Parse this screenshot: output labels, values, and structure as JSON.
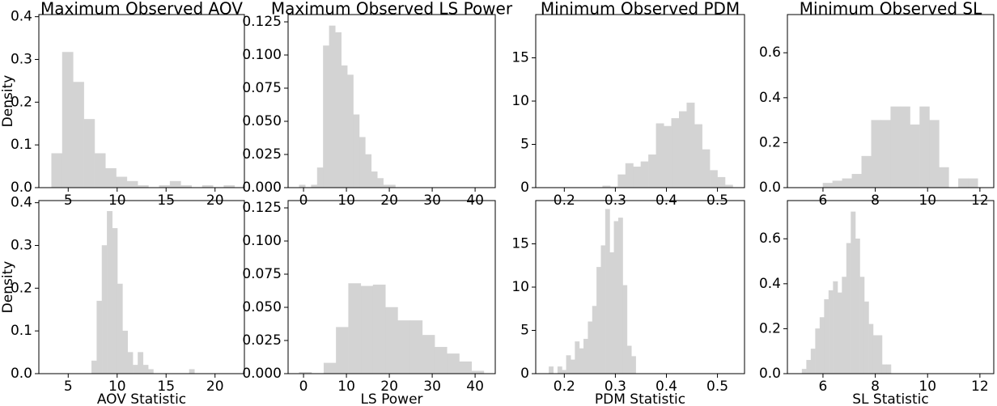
{
  "chart_data": [
    {
      "type": "histogram",
      "title": "Maximum Observed AOV",
      "ylabel": "Density",
      "color": "#d3d3d3",
      "bins": [
        3.3,
        4.4,
        5.5,
        6.6,
        7.7,
        8.8,
        9.9,
        11,
        12.1,
        13.2,
        14.3,
        15.4,
        16.5,
        17.6,
        18.7,
        19.8,
        20.9,
        22
      ],
      "values": [
        0.08,
        0.317,
        0.247,
        0.16,
        0.08,
        0.045,
        0.025,
        0.015,
        0.005,
        0,
        0.005,
        0.015,
        0.005,
        0,
        0.005,
        0,
        0.005
      ],
      "xlim": [
        2,
        23
      ],
      "xticks": [
        5,
        10,
        15,
        20
      ],
      "ylim": [
        0,
        0.405
      ],
      "yticks": [
        {
          "value": 0,
          "label": "0.0"
        },
        0.1,
        0.2,
        0.3,
        0.4
      ]
    },
    {
      "type": "histogram",
      "title": "Maximum Observed LS Power",
      "color": "#d3d3d3",
      "bins": [
        -1,
        0.4,
        1.8,
        3.2,
        4.6,
        6,
        7.4,
        8.8,
        10.2,
        11.6,
        13,
        14.4,
        15.8,
        17.2,
        18.6,
        20,
        21.4
      ],
      "values": [
        0.002,
        0,
        0.002,
        0.015,
        0.107,
        0.122,
        0.117,
        0.092,
        0.085,
        0.055,
        0.038,
        0.025,
        0.012,
        0.007,
        0.002,
        0.002
      ],
      "xlim": [
        -3.6,
        44.7
      ],
      "xticks": [
        0,
        10,
        20,
        30,
        40
      ],
      "ylim": [
        0,
        0.1305
      ],
      "yticks": [
        {
          "value": 0,
          "label": "0.000"
        },
        {
          "value": 0.025,
          "label": "0.025"
        },
        {
          "value": 0.05,
          "label": "0.050"
        },
        {
          "value": 0.075,
          "label": "0.075"
        },
        {
          "value": 0.1,
          "label": "0.100"
        },
        {
          "value": 0.125,
          "label": "0.125"
        }
      ]
    },
    {
      "type": "histogram",
      "title": "Minimum Observed PDM",
      "color": "#d3d3d3",
      "bins": [
        0.275,
        0.29,
        0.305,
        0.32,
        0.335,
        0.35,
        0.365,
        0.38,
        0.395,
        0.41,
        0.425,
        0.44,
        0.455,
        0.47,
        0.485,
        0.5,
        0.515,
        0.53
      ],
      "values": [
        0.2,
        0.1,
        1.5,
        2.8,
        2.4,
        3.0,
        3.8,
        7.4,
        7.1,
        8.0,
        8.8,
        9.8,
        7.3,
        4.4,
        2.0,
        1.2,
        0.3
      ],
      "xlim": [
        0.144,
        0.553
      ],
      "xticks": [
        0.2,
        0.3,
        0.4,
        0.5
      ],
      "ylim": [
        0,
        20
      ],
      "yticks": [
        0,
        5,
        10,
        15
      ]
    },
    {
      "type": "histogram",
      "title": "Minimum Observed SL",
      "color": "#d3d3d3",
      "bins": [
        6,
        6.37,
        6.74,
        7.11,
        7.48,
        7.85,
        8.22,
        8.59,
        8.96,
        9.33,
        9.7,
        10.07,
        10.44,
        10.81,
        11.18,
        11.55,
        11.92
      ],
      "values": [
        0.02,
        0.03,
        0.04,
        0.06,
        0.14,
        0.3,
        0.3,
        0.36,
        0.36,
        0.28,
        0.36,
        0.3,
        0.09,
        0,
        0.04,
        0.04
      ],
      "xlim": [
        4.64,
        12.53
      ],
      "xticks": [
        6,
        8,
        10,
        12
      ],
      "ylim": [
        0,
        0.77
      ],
      "yticks": [
        {
          "value": 0,
          "label": "0.0"
        },
        0.2,
        0.4,
        0.6
      ]
    },
    {
      "type": "histogram",
      "xlabel": "AOV Statistic",
      "ylabel": "Density",
      "color": "#d3d3d3",
      "bins": [
        7.4,
        7.925,
        8.45,
        8.975,
        9.5,
        10.025,
        10.55,
        11.075,
        11.6,
        12.125,
        12.65,
        13.175,
        13.7,
        14.225,
        14.75,
        15.275,
        15.8,
        16.325,
        16.85,
        17.375,
        17.9
      ],
      "values": [
        0.03,
        0.17,
        0.3,
        0.38,
        0.34,
        0.21,
        0.1,
        0.05,
        0.02,
        0.05,
        0.02,
        0.01,
        0,
        0,
        0,
        0,
        0,
        0,
        0,
        0.01
      ],
      "xlim": [
        2,
        23
      ],
      "xticks": [
        5,
        10,
        15,
        20
      ],
      "ylim": [
        0,
        0.405
      ],
      "yticks": [
        {
          "value": 0,
          "label": "0.0"
        },
        0.1,
        0.2,
        0.3,
        0.4
      ]
    },
    {
      "type": "histogram",
      "xlabel": "LS Power",
      "color": "#d3d3d3",
      "bins": [
        -1,
        1.87,
        4.74,
        7.61,
        10.48,
        13.35,
        16.22,
        19.09,
        21.96,
        24.83,
        27.7,
        30.57,
        33.44,
        36.31,
        39.18,
        42.05
      ],
      "values": [
        0.001,
        0,
        0.008,
        0.035,
        0.068,
        0.066,
        0.067,
        0.05,
        0.04,
        0.04,
        0.029,
        0.02,
        0.015,
        0.009,
        0.002
      ],
      "xlim": [
        -3.6,
        44.7
      ],
      "xticks": [
        0,
        10,
        20,
        30,
        40
      ],
      "ylim": [
        0,
        0.1305
      ],
      "yticks": [
        {
          "value": 0,
          "label": "0.000"
        },
        {
          "value": 0.025,
          "label": "0.025"
        },
        {
          "value": 0.05,
          "label": "0.050"
        },
        {
          "value": 0.075,
          "label": "0.075"
        },
        {
          "value": 0.1,
          "label": "0.100"
        },
        {
          "value": 0.125,
          "label": "0.125"
        }
      ]
    },
    {
      "type": "histogram",
      "xlabel": "PDM Statistic",
      "color": "#d3d3d3",
      "bins": [
        0.17,
        0.1785,
        0.187,
        0.1955,
        0.204,
        0.2125,
        0.221,
        0.2295,
        0.238,
        0.2465,
        0.255,
        0.2635,
        0.272,
        0.2805,
        0.289,
        0.2975,
        0.306,
        0.3145,
        0.323,
        0.3315,
        0.34
      ],
      "values": [
        0.8,
        0,
        0.8,
        0.4,
        2.1,
        1.6,
        3.7,
        2.9,
        4.0,
        6.0,
        7.8,
        12.3,
        14.8,
        19.0,
        14.0,
        17.6,
        18.0,
        10.2,
        3.2,
        2.0
      ],
      "xlim": [
        0.144,
        0.553
      ],
      "xticks": [
        0.2,
        0.3,
        0.4,
        0.5
      ],
      "ylim": [
        0,
        20
      ],
      "yticks": [
        0,
        5,
        10,
        15
      ]
    },
    {
      "type": "histogram",
      "xlabel": "SL Statistic",
      "color": "#d3d3d3",
      "bins": [
        5.2,
        5.37,
        5.54,
        5.71,
        5.88,
        6.05,
        6.22,
        6.39,
        6.56,
        6.73,
        6.9,
        7.07,
        7.24,
        7.41,
        7.58,
        7.75,
        7.92,
        8.09,
        8.26,
        8.43,
        8.6
      ],
      "values": [
        0.02,
        0.06,
        0.11,
        0.2,
        0.25,
        0.33,
        0.37,
        0.41,
        0.36,
        0.43,
        0.58,
        0.72,
        0.6,
        0.43,
        0.32,
        0.22,
        0.17,
        0.17,
        0.04,
        0.04
      ],
      "xlim": [
        4.64,
        12.53
      ],
      "xticks": [
        6,
        8,
        10,
        12
      ],
      "ylim": [
        0,
        0.77
      ],
      "yticks": [
        {
          "value": 0,
          "label": "0.0"
        },
        0.2,
        0.4,
        0.6
      ]
    }
  ]
}
